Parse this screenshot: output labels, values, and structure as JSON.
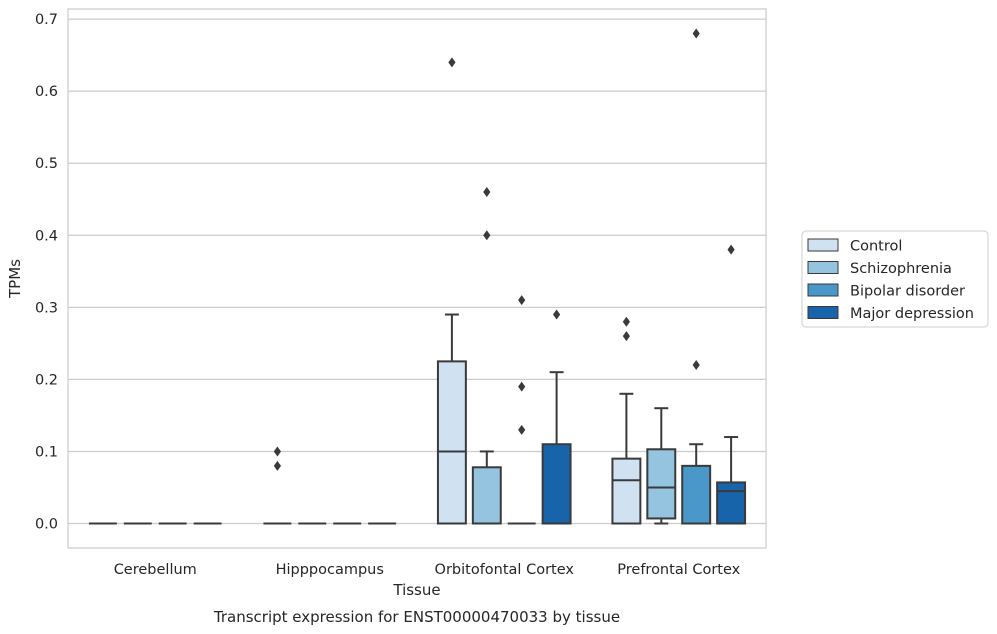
{
  "chart_data": {
    "type": "box",
    "title": "",
    "caption": "Transcript expression for ENST00000470033 by tissue",
    "xlabel": "Tissue",
    "ylabel": "TPMs",
    "ylim": [
      -0.034,
      0.714
    ],
    "yticks": [
      0.0,
      0.1,
      0.2,
      0.3,
      0.4,
      0.5,
      0.6,
      0.7
    ],
    "ytick_labels": [
      "0.0",
      "0.1",
      "0.2",
      "0.3",
      "0.4",
      "0.5",
      "0.6",
      "0.7"
    ],
    "grid": "horizontal",
    "legend_placement": "right",
    "categories": [
      "Cerebellum",
      "Hipppocampus",
      "Orbitofontal Cortex",
      "Prefrontal Cortex"
    ],
    "series": [
      {
        "name": "Control",
        "color": "#d0e1f2",
        "boxes": [
          {
            "q1": 0,
            "median": 0,
            "q3": 0,
            "whislo": 0,
            "whishi": 0,
            "fliers": []
          },
          {
            "q1": 0,
            "median": 0,
            "q3": 0,
            "whislo": 0,
            "whishi": 0,
            "fliers": [
              0.1,
              0.08
            ]
          },
          {
            "q1": 0,
            "median": 0.1,
            "q3": 0.225,
            "whislo": 0,
            "whishi": 0.29,
            "fliers": [
              0.64
            ]
          },
          {
            "q1": 0,
            "median": 0.06,
            "q3": 0.09,
            "whislo": 0,
            "whishi": 0.18,
            "fliers": [
              0.28,
              0.26
            ]
          }
        ]
      },
      {
        "name": "Schizophrenia",
        "color": "#94c4df",
        "boxes": [
          {
            "q1": 0,
            "median": 0,
            "q3": 0,
            "whislo": 0,
            "whishi": 0,
            "fliers": []
          },
          {
            "q1": 0,
            "median": 0,
            "q3": 0,
            "whislo": 0,
            "whishi": 0,
            "fliers": []
          },
          {
            "q1": 0,
            "median": 0,
            "q3": 0.078,
            "whislo": 0,
            "whishi": 0.1,
            "fliers": [
              0.46,
              0.4
            ]
          },
          {
            "q1": 0.007,
            "median": 0.05,
            "q3": 0.103,
            "whislo": 0,
            "whishi": 0.16,
            "fliers": []
          }
        ]
      },
      {
        "name": "Bipolar disorder",
        "color": "#4a98c9",
        "boxes": [
          {
            "q1": 0,
            "median": 0,
            "q3": 0,
            "whislo": 0,
            "whishi": 0,
            "fliers": []
          },
          {
            "q1": 0,
            "median": 0,
            "q3": 0,
            "whislo": 0,
            "whishi": 0,
            "fliers": []
          },
          {
            "q1": 0,
            "median": 0,
            "q3": 0,
            "whislo": 0,
            "whishi": 0,
            "fliers": [
              0.31,
              0.19,
              0.13
            ]
          },
          {
            "q1": 0,
            "median": 0,
            "q3": 0.08,
            "whislo": 0,
            "whishi": 0.11,
            "fliers": [
              0.68,
              0.22
            ]
          }
        ]
      },
      {
        "name": "Major depression",
        "color": "#1764ab",
        "boxes": [
          {
            "q1": 0,
            "median": 0,
            "q3": 0,
            "whislo": 0,
            "whishi": 0,
            "fliers": []
          },
          {
            "q1": 0,
            "median": 0,
            "q3": 0,
            "whislo": 0,
            "whishi": 0,
            "fliers": []
          },
          {
            "q1": 0,
            "median": 0,
            "q3": 0.11,
            "whislo": 0,
            "whishi": 0.21,
            "fliers": [
              0.29
            ]
          },
          {
            "q1": 0,
            "median": 0.045,
            "q3": 0.057,
            "whislo": 0,
            "whishi": 0.12,
            "fliers": [
              0.38
            ]
          }
        ]
      }
    ]
  }
}
